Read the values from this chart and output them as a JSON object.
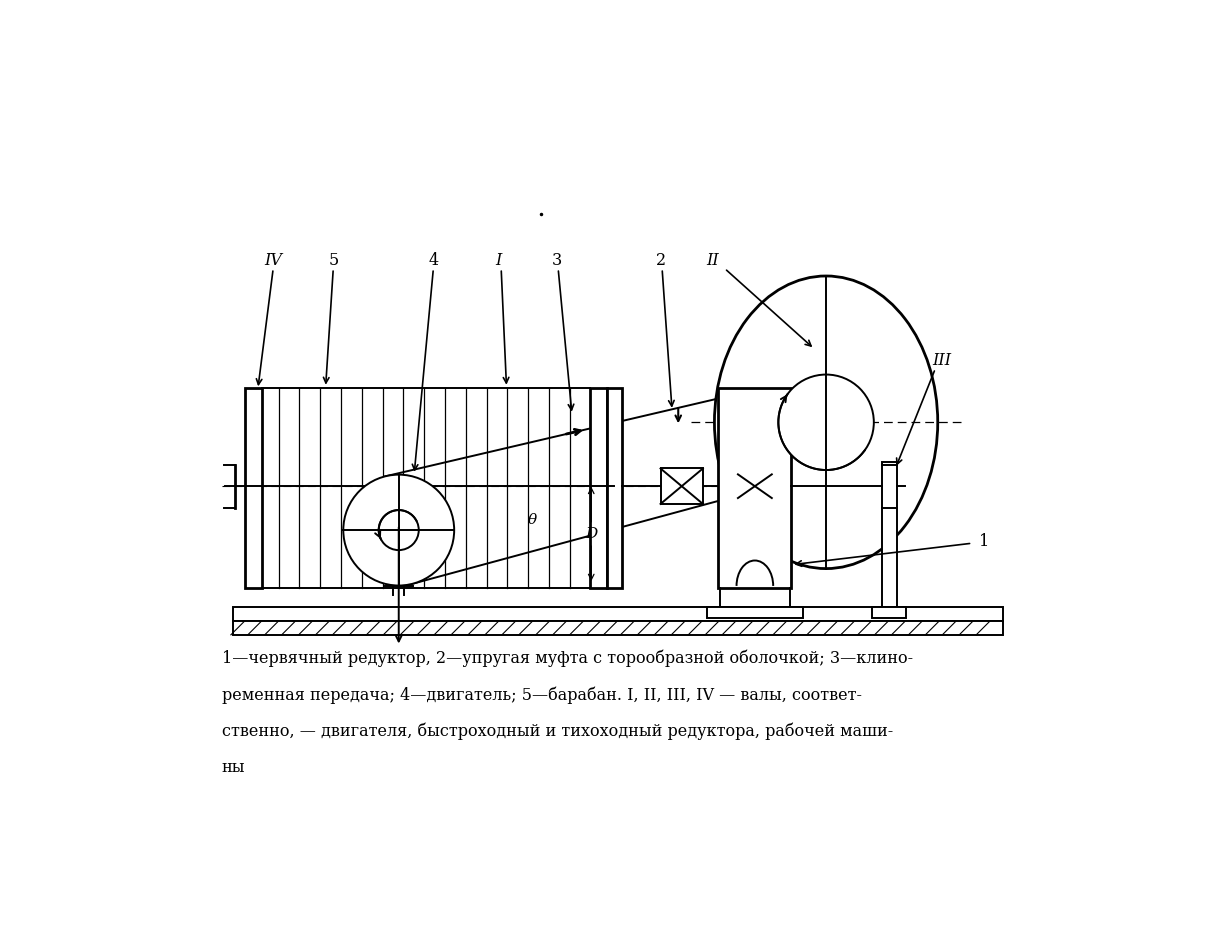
{
  "bg_color": "#ffffff",
  "line_color": "#000000",
  "fig_width": 12.25,
  "fig_height": 9.46,
  "caption_line1": "1—червячный редуктор, 2—упругая муфта с торообразной оболочкой; 3—клино-",
  "caption_line2": "ременная передача; 4—двигатель; 5—барабан. I, II, III, IV — валы, соответ-",
  "caption_line3": "ственно, — двигателя, быстроходный и тихоходный редуктора, рабочей маши-",
  "caption_line4": "ны"
}
